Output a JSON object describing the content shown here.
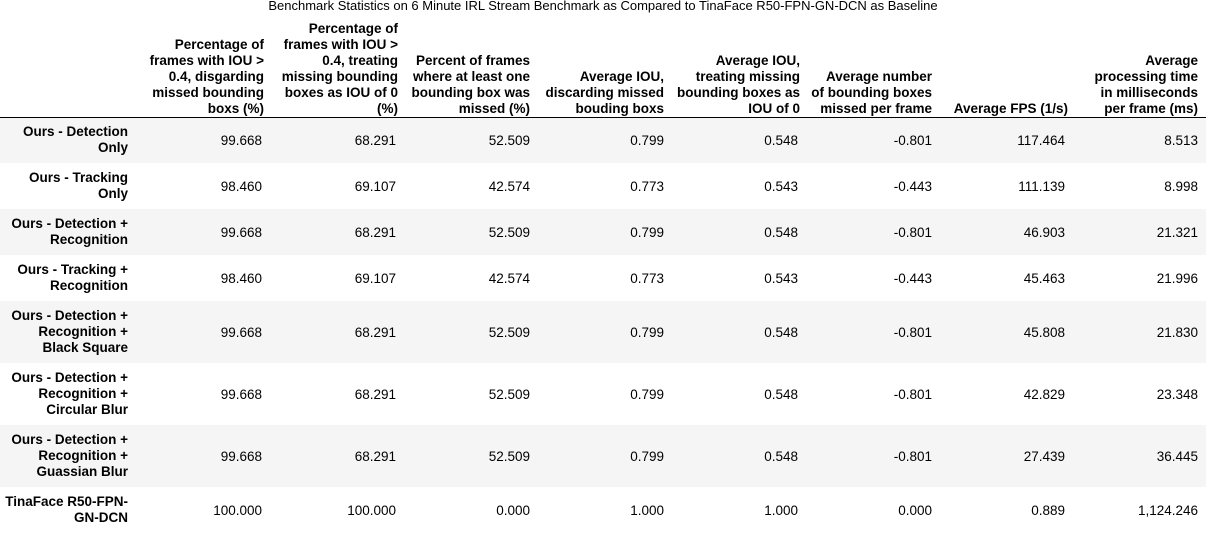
{
  "chart_data": {
    "type": "table",
    "title": "Benchmark Statistics on 6 Minute IRL Stream Benchmark as Compared to TinaFace R50-FPN-GN-DCN as Baseline",
    "columns": [
      "Percentage of frames with IOU > 0.4, disgarding missed bounding boxs (%)",
      "Percentage of frames with IOU > 0.4, treating missing bounding boxes as IOU of 0 (%)",
      "Percent of frames where at least one bounding box was missed (%)",
      "Average IOU, discarding missed bouding boxs",
      "Average IOU, treating missing bounding boxes as IOU of 0",
      "Average number of bounding boxes missed per frame",
      "Average FPS (1/s)",
      "Average processing time in milliseconds per frame (ms)"
    ],
    "rows": [
      {
        "label": "Ours - Detection Only",
        "values": [
          "99.668",
          "68.291",
          "52.509",
          "0.799",
          "0.548",
          "-0.801",
          "117.464",
          "8.513"
        ]
      },
      {
        "label": "Ours - Tracking Only",
        "values": [
          "98.460",
          "69.107",
          "42.574",
          "0.773",
          "0.543",
          "-0.443",
          "111.139",
          "8.998"
        ]
      },
      {
        "label": "Ours - Detection + Recognition",
        "values": [
          "99.668",
          "68.291",
          "52.509",
          "0.799",
          "0.548",
          "-0.801",
          "46.903",
          "21.321"
        ]
      },
      {
        "label": "Ours - Tracking + Recognition",
        "values": [
          "98.460",
          "69.107",
          "42.574",
          "0.773",
          "0.543",
          "-0.443",
          "45.463",
          "21.996"
        ]
      },
      {
        "label": "Ours - Detection + Recognition + Black Square",
        "values": [
          "99.668",
          "68.291",
          "52.509",
          "0.799",
          "0.548",
          "-0.801",
          "45.808",
          "21.830"
        ]
      },
      {
        "label": "Ours - Detection + Recognition + Circular Blur",
        "values": [
          "99.668",
          "68.291",
          "52.509",
          "0.799",
          "0.548",
          "-0.801",
          "42.829",
          "23.348"
        ]
      },
      {
        "label": "Ours - Detection + Recognition + Guassian Blur",
        "values": [
          "99.668",
          "68.291",
          "52.509",
          "0.799",
          "0.548",
          "-0.801",
          "27.439",
          "36.445"
        ]
      },
      {
        "label": "TinaFace R50-FPN-GN-DCN",
        "values": [
          "100.000",
          "100.000",
          "0.000",
          "1.000",
          "1.000",
          "0.000",
          "0.889",
          "1,124.246"
        ]
      }
    ]
  }
}
